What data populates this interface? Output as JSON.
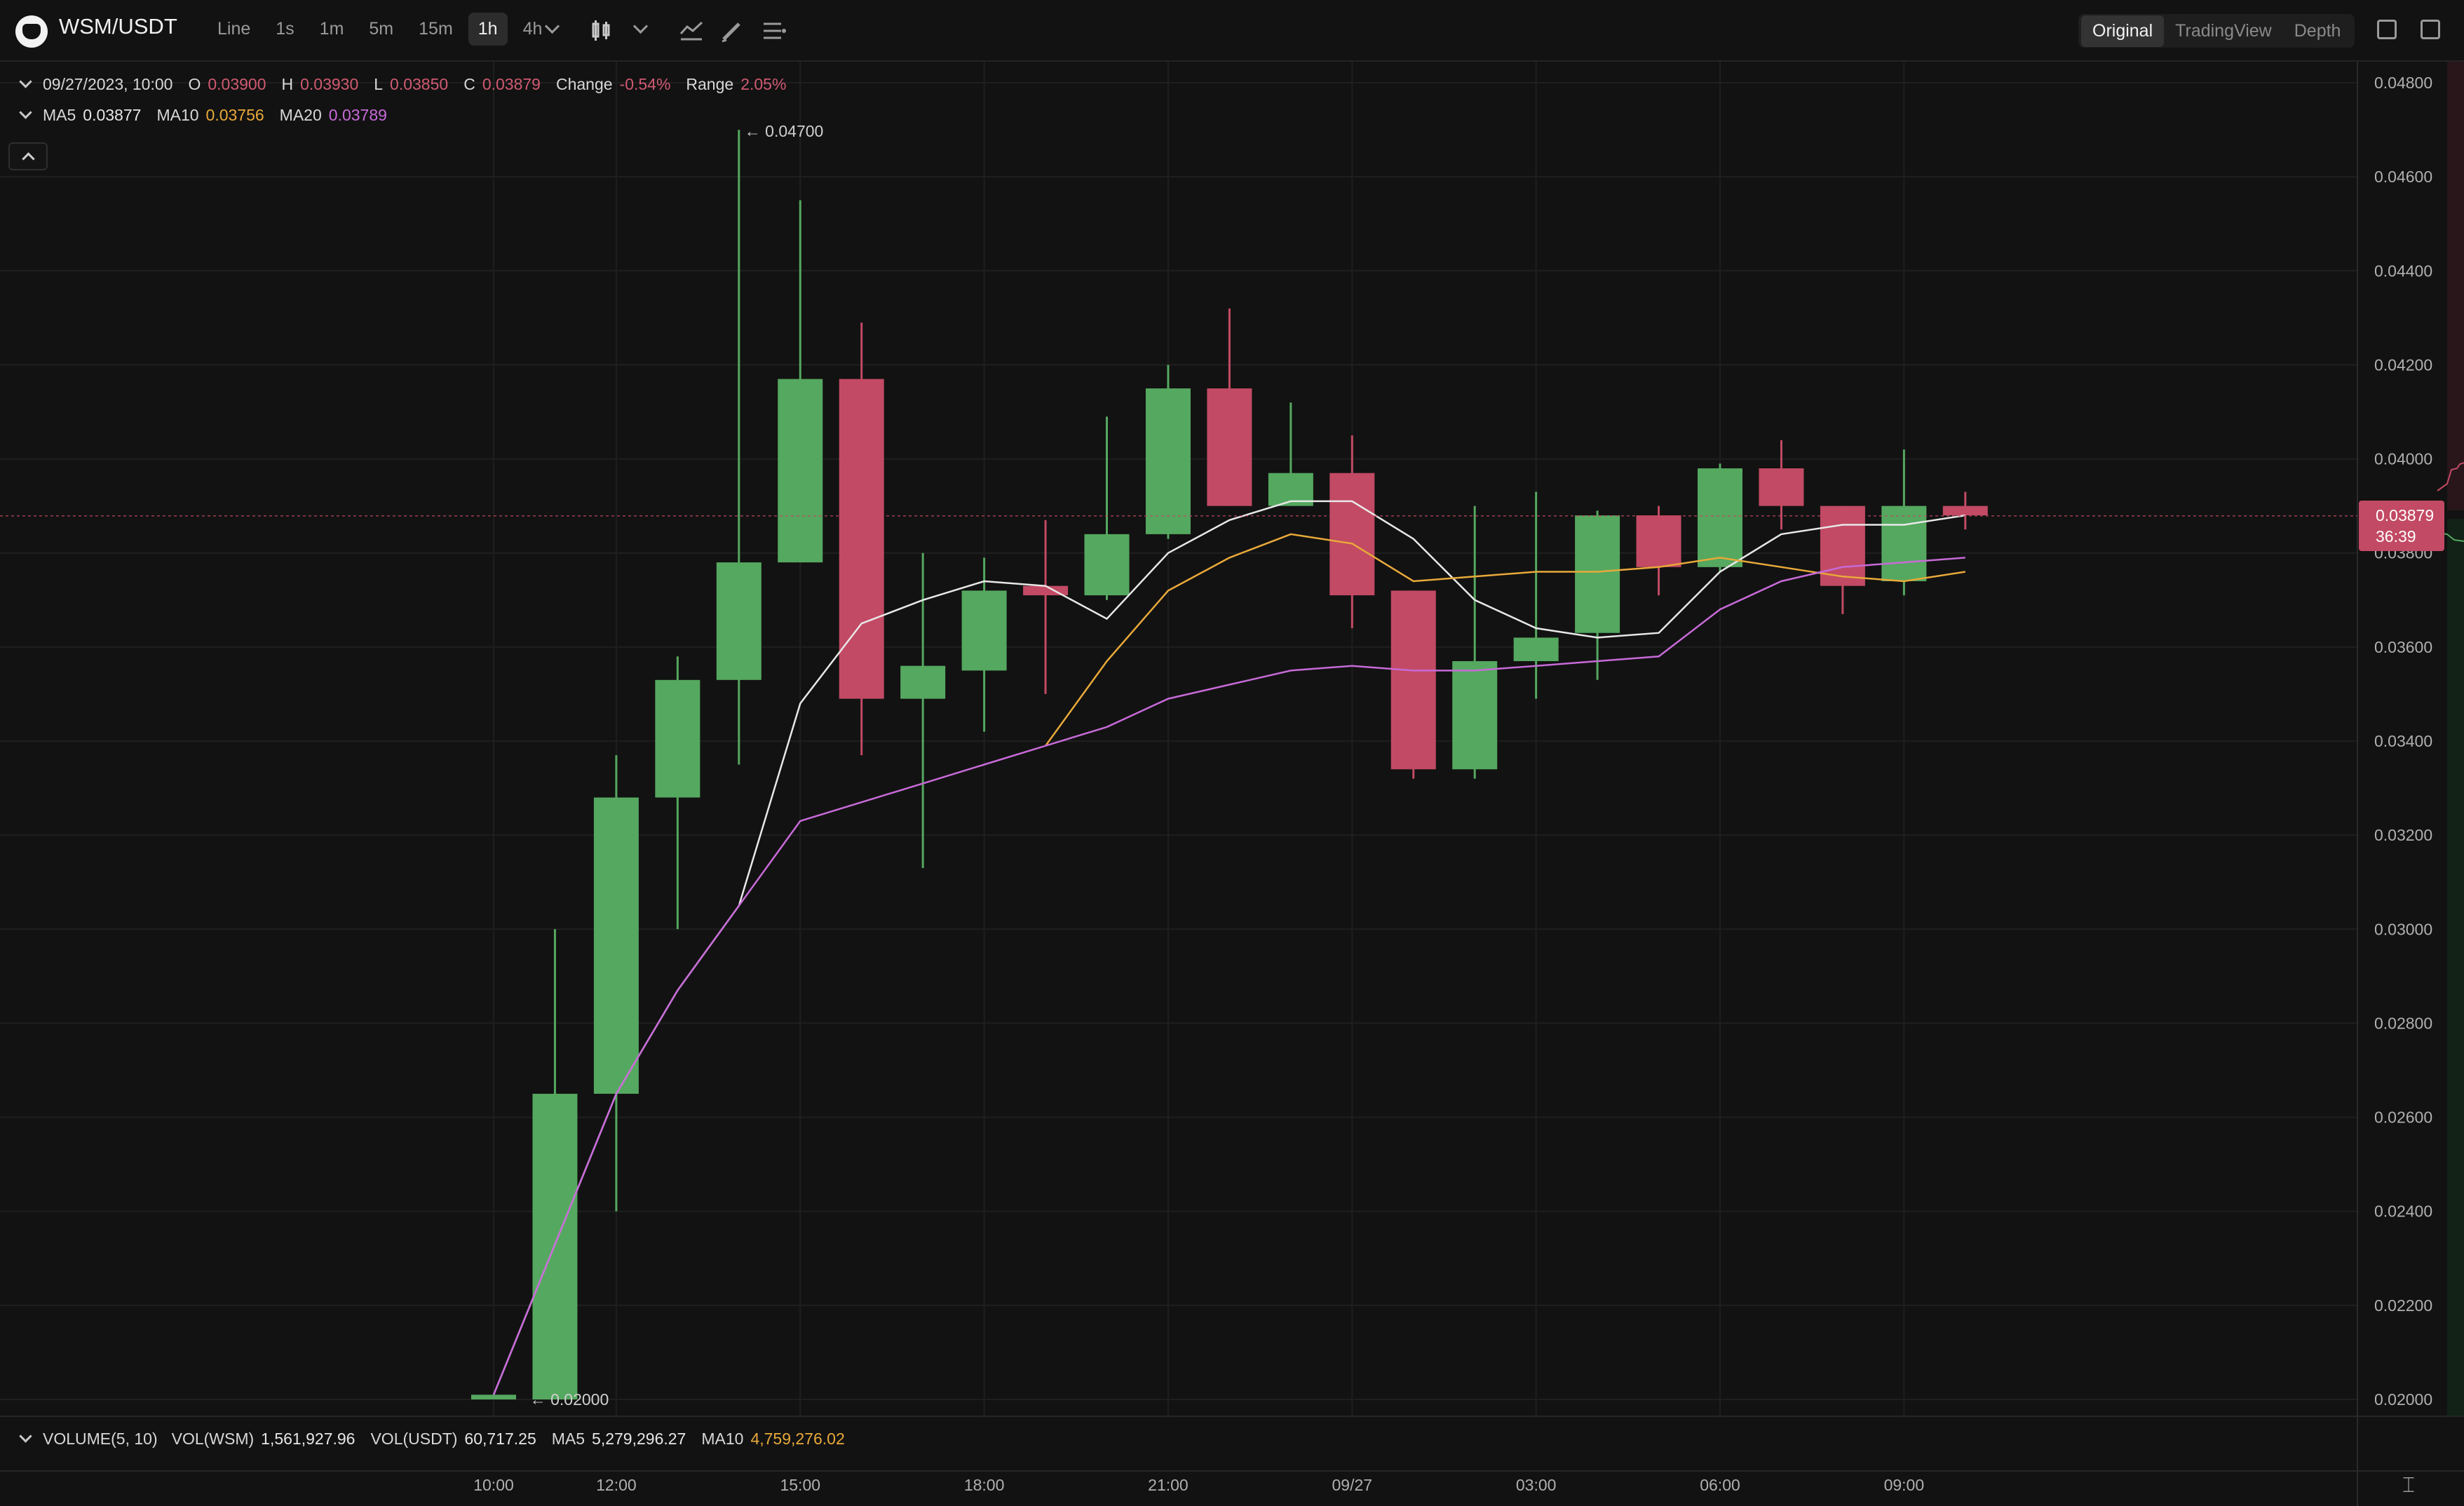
{
  "header": {
    "pair": "WSM/USDT",
    "intervals": [
      "Line",
      "1s",
      "1m",
      "5m",
      "15m",
      "1h",
      "4h"
    ],
    "active_interval": "1h",
    "views": [
      "Original",
      "TradingView",
      "Depth"
    ],
    "active_view": "Original"
  },
  "ohlc_info": {
    "datetime": "09/27/2023, 10:00",
    "o_label": "O",
    "o": "0.03900",
    "h_label": "H",
    "h": "0.03930",
    "l_label": "L",
    "l": "0.03850",
    "c_label": "C",
    "c": "0.03879",
    "change_label": "Change",
    "change": "-0.54%",
    "range_label": "Range",
    "range": "2.05%"
  },
  "ma_info": {
    "ma5_label": "MA5",
    "ma5": "0.03877",
    "ma10_label": "MA10",
    "ma10": "0.03756",
    "ma20_label": "MA20",
    "ma20": "0.03789"
  },
  "volume_info": {
    "title": "VOLUME(5, 10)",
    "vol_wsm_label": "VOL(WSM)",
    "vol_wsm": "1,561,927.96",
    "vol_usdt_label": "VOL(USDT)",
    "vol_usdt": "60,717.25",
    "ma5_label": "MA5",
    "ma5": "5,279,296.27",
    "ma10_label": "MA10",
    "ma10": "4,759,276.02"
  },
  "current_price": {
    "price": "0.03879",
    "countdown": "36:39"
  },
  "colors": {
    "up": "#55a85f",
    "down": "#c24a64",
    "ma5": "#e8e8e8",
    "ma10": "#e9a93a",
    "ma20": "#c76ad8",
    "background": "#121212"
  },
  "chart_data": {
    "type": "candlestick",
    "x_tick_labels": [
      "10:00",
      "12:00",
      "15:00",
      "18:00",
      "21:00",
      "09/27",
      "03:00",
      "06:00",
      "09:00"
    ],
    "x_tick_index": [
      0,
      2,
      5,
      8,
      11,
      14,
      17,
      20,
      23
    ],
    "y_ticks": [
      "0.04800",
      "0.04600",
      "0.04400",
      "0.04200",
      "0.04000",
      "0.03800",
      "0.03600",
      "0.03400",
      "0.03200",
      "0.03000",
      "0.02800",
      "0.02600",
      "0.02400",
      "0.02200",
      "0.02000"
    ],
    "ylim": [
      0.0197,
      0.0484
    ],
    "annotations": {
      "high_label": "0.04700",
      "low_label": "0.02000"
    },
    "candles": [
      {
        "o": 0.02,
        "h": 0.0201,
        "l": 0.02,
        "c": 0.0201
      },
      {
        "o": 0.02,
        "h": 0.03,
        "l": 0.02,
        "c": 0.0265
      },
      {
        "o": 0.0265,
        "h": 0.0337,
        "l": 0.024,
        "c": 0.0328
      },
      {
        "o": 0.0328,
        "h": 0.0358,
        "l": 0.03,
        "c": 0.0353
      },
      {
        "o": 0.0353,
        "h": 0.047,
        "l": 0.0335,
        "c": 0.0378
      },
      {
        "o": 0.0378,
        "h": 0.0455,
        "l": 0.0378,
        "c": 0.0417
      },
      {
        "o": 0.0417,
        "h": 0.0429,
        "l": 0.0337,
        "c": 0.0349
      },
      {
        "o": 0.0349,
        "h": 0.038,
        "l": 0.0313,
        "c": 0.0356
      },
      {
        "o": 0.0355,
        "h": 0.0379,
        "l": 0.0342,
        "c": 0.0372
      },
      {
        "o": 0.0373,
        "h": 0.0387,
        "l": 0.035,
        "c": 0.0371
      },
      {
        "o": 0.0371,
        "h": 0.0409,
        "l": 0.037,
        "c": 0.0384
      },
      {
        "o": 0.0384,
        "h": 0.042,
        "l": 0.0383,
        "c": 0.0415
      },
      {
        "o": 0.0415,
        "h": 0.0432,
        "l": 0.039,
        "c": 0.039
      },
      {
        "o": 0.039,
        "h": 0.0412,
        "l": 0.039,
        "c": 0.0397
      },
      {
        "o": 0.0397,
        "h": 0.0405,
        "l": 0.0364,
        "c": 0.0371
      },
      {
        "o": 0.0372,
        "h": 0.0372,
        "l": 0.0332,
        "c": 0.0334
      },
      {
        "o": 0.0334,
        "h": 0.039,
        "l": 0.0332,
        "c": 0.0357
      },
      {
        "o": 0.0357,
        "h": 0.0393,
        "l": 0.0349,
        "c": 0.0362
      },
      {
        "o": 0.0363,
        "h": 0.0389,
        "l": 0.0353,
        "c": 0.0388
      },
      {
        "o": 0.0388,
        "h": 0.039,
        "l": 0.0371,
        "c": 0.0377
      },
      {
        "o": 0.0377,
        "h": 0.0399,
        "l": 0.0376,
        "c": 0.0398
      },
      {
        "o": 0.0398,
        "h": 0.0404,
        "l": 0.0385,
        "c": 0.039
      },
      {
        "o": 0.039,
        "h": 0.039,
        "l": 0.0367,
        "c": 0.0373
      },
      {
        "o": 0.0374,
        "h": 0.0402,
        "l": 0.0371,
        "c": 0.039
      },
      {
        "o": 0.039,
        "h": 0.0393,
        "l": 0.0385,
        "c": 0.0388
      }
    ],
    "series": [
      {
        "name": "MA5",
        "values": [
          0.0201,
          0.0233,
          0.0265,
          0.0287,
          0.0305,
          0.0348,
          0.0365,
          0.037,
          0.0374,
          0.0373,
          0.0366,
          0.038,
          0.0387,
          0.0391,
          0.0391,
          0.0383,
          0.037,
          0.0364,
          0.0362,
          0.0363,
          0.0376,
          0.0384,
          0.0386,
          0.0386,
          0.0388
        ]
      },
      {
        "name": "MA10",
        "values": [
          null,
          null,
          null,
          null,
          null,
          null,
          null,
          null,
          null,
          0.0339,
          0.0357,
          0.0372,
          0.0379,
          0.0384,
          0.0382,
          0.0374,
          0.0375,
          0.0376,
          0.0376,
          0.0377,
          0.0379,
          0.0377,
          0.0375,
          0.0374,
          0.0376
        ]
      },
      {
        "name": "MA20",
        "values": [
          0.0201,
          0.0233,
          0.0265,
          0.0287,
          0.0305,
          0.0323,
          0.0327,
          0.0331,
          0.0335,
          0.0339,
          0.0343,
          0.0349,
          0.0352,
          0.0355,
          0.0356,
          0.0355,
          0.0355,
          0.0356,
          0.0357,
          0.0358,
          0.0368,
          0.0374,
          0.0377,
          0.0378,
          0.0379
        ]
      }
    ]
  }
}
